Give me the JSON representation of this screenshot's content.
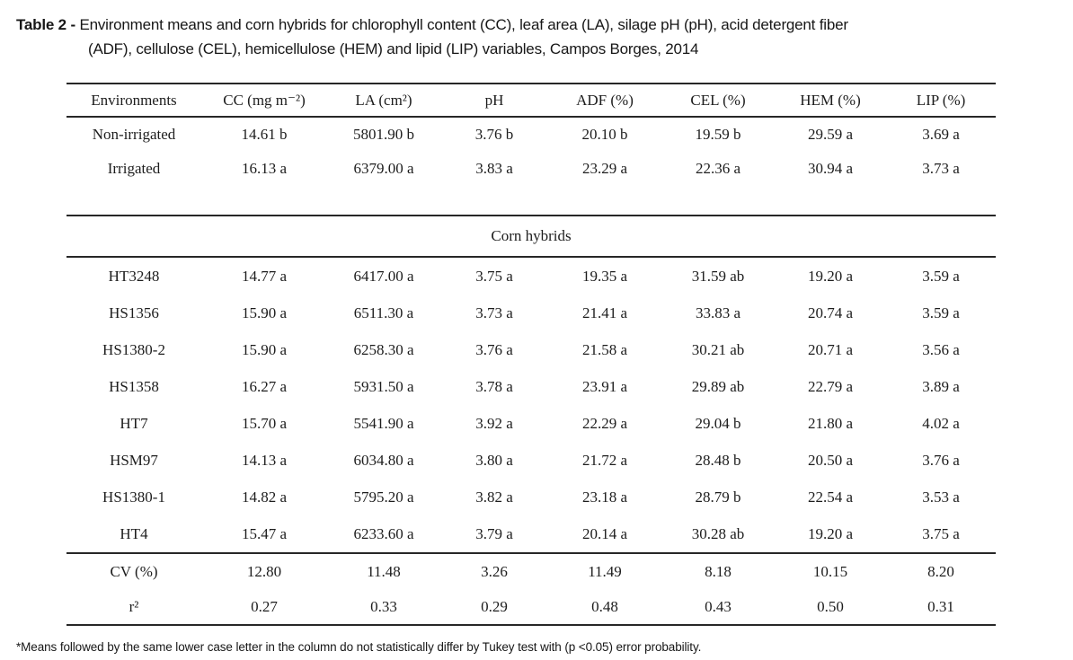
{
  "caption": {
    "label": "Table 2 -",
    "line1": "Environment means and corn hybrids for chlorophyll content (CC), leaf area (LA), silage pH (pH), acid detergent fiber",
    "line2": "(ADF), cellulose (CEL), hemicellulose (HEM) and lipid (LIP) variables, Campos Borges, 2014"
  },
  "table": {
    "columns": [
      "Environments",
      "CC (mg m⁻²)",
      "LA (cm²)",
      "pH",
      "ADF (%)",
      "CEL (%)",
      "HEM (%)",
      "LIP (%)"
    ],
    "environment_rows": [
      {
        "label": "Non-irrigated",
        "values": [
          "14.61 b",
          "5801.90 b",
          "3.76 b",
          "20.10 b",
          "19.59 b",
          "29.59 a",
          "3.69 a"
        ]
      },
      {
        "label": "Irrigated",
        "values": [
          "16.13 a",
          "6379.00 a",
          "3.83 a",
          "23.29 a",
          "22.36 a",
          "30.94 a",
          "3.73 a"
        ]
      }
    ],
    "section_header": "Corn hybrids",
    "hybrid_rows": [
      {
        "label": "HT3248",
        "values": [
          "14.77 a",
          "6417.00 a",
          "3.75 a",
          "19.35 a",
          "31.59 ab",
          "19.20 a",
          "3.59 a"
        ]
      },
      {
        "label": "HS1356",
        "values": [
          "15.90 a",
          "6511.30 a",
          "3.73 a",
          "21.41 a",
          "33.83 a",
          "20.74 a",
          "3.59 a"
        ]
      },
      {
        "label": "HS1380-2",
        "values": [
          "15.90 a",
          "6258.30 a",
          "3.76 a",
          "21.58 a",
          "30.21 ab",
          "20.71 a",
          "3.56 a"
        ]
      },
      {
        "label": "HS1358",
        "values": [
          "16.27 a",
          "5931.50 a",
          "3.78 a",
          "23.91 a",
          "29.89 ab",
          "22.79 a",
          "3.89 a"
        ]
      },
      {
        "label": "HT7",
        "values": [
          "15.70 a",
          "5541.90 a",
          "3.92 a",
          "22.29 a",
          "29.04 b",
          "21.80 a",
          "4.02 a"
        ]
      },
      {
        "label": "HSM97",
        "values": [
          "14.13 a",
          "6034.80 a",
          "3.80 a",
          "21.72 a",
          "28.48 b",
          "20.50 a",
          "3.76 a"
        ]
      },
      {
        "label": "HS1380-1",
        "values": [
          "14.82 a",
          "5795.20 a",
          "3.82 a",
          "23.18 a",
          "28.79 b",
          "22.54 a",
          "3.53 a"
        ]
      },
      {
        "label": "HT4",
        "values": [
          "15.47 a",
          "6233.60 a",
          "3.79 a",
          "20.14 a",
          "30.28 ab",
          "19.20 a",
          "3.75 a"
        ]
      }
    ],
    "stats_rows": [
      {
        "label": "CV (%)",
        "values": [
          "12.80",
          "11.48",
          "3.26",
          "11.49",
          "8.18",
          "10.15",
          "8.20"
        ]
      },
      {
        "label": "r²",
        "values": [
          "0.27",
          "0.33",
          "0.29",
          "0.48",
          "0.43",
          "0.50",
          "0.31"
        ]
      }
    ]
  },
  "footnote": "*Means followed by the same lower case letter in the column do not statistically differ by Tukey test with (p <0.05) error probability.",
  "colors": {
    "background": "#ffffff",
    "text": "#1d1d1d",
    "rule": "#272727"
  }
}
